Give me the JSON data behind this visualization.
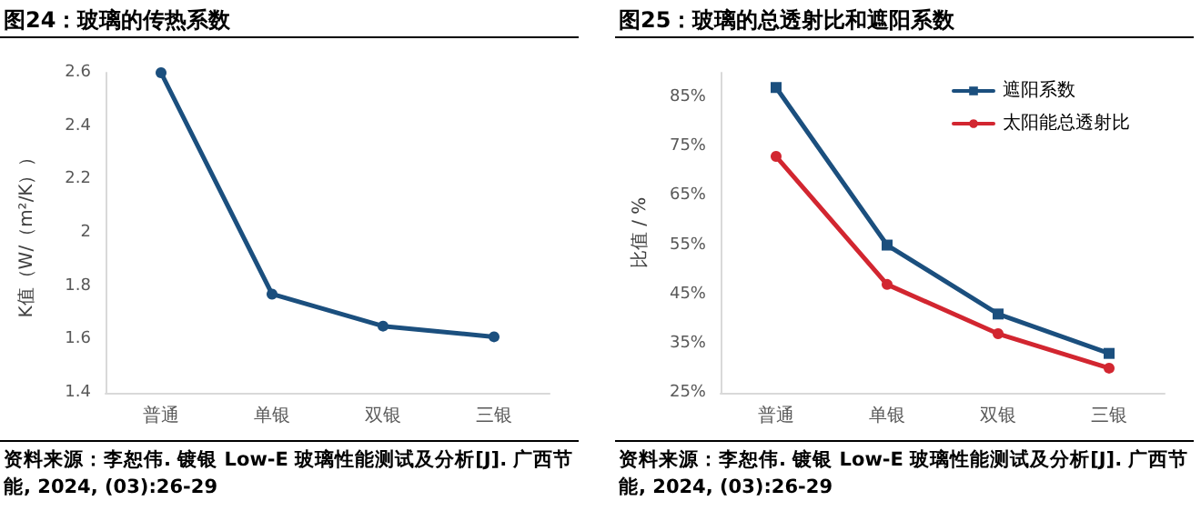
{
  "chart_data": [
    {
      "type": "line",
      "title": "图24：玻璃的传热系数",
      "ylabel": "K值（W/（m²/K））",
      "categories": [
        "普通",
        "单银",
        "双银",
        "三银"
      ],
      "series": [
        {
          "color": "#1b4f7e",
          "values": [
            2.6,
            1.77,
            1.65,
            1.61
          ]
        }
      ],
      "ylim": [
        1.4,
        2.6
      ],
      "yticks": [
        1.4,
        1.6,
        1.8,
        2,
        2.2,
        2.4,
        2.6
      ],
      "grid": false,
      "legend": false,
      "marker": "circle",
      "line_style": "solid",
      "annotations": [
        "资料来源：李恕伟. 镀银 Low-E 玻璃性能测试及分析[J]. 广西节能, 2024, (03):26-29"
      ]
    },
    {
      "type": "line",
      "title": "图25：玻璃的总透射比和遮阳系数",
      "ylabel": "比值 / %",
      "categories": [
        "普通",
        "单银",
        "双银",
        "三银"
      ],
      "series": [
        {
          "name": "遮阳系数",
          "color": "#1b4f7e",
          "marker": "square",
          "values": [
            87,
            55,
            41,
            33
          ]
        },
        {
          "name": "太阳能总透射比",
          "color": "#d22630",
          "marker": "circle",
          "values": [
            73,
            47,
            37,
            30
          ]
        }
      ],
      "ylim": [
        25,
        90
      ],
      "yticks": [
        {
          "value": 25,
          "label": "25%"
        },
        {
          "value": 35,
          "label": "35%"
        },
        {
          "value": 45,
          "label": "45%"
        },
        {
          "value": 55,
          "label": "55%"
        },
        {
          "value": 65,
          "label": "65%"
        },
        {
          "value": 75,
          "label": "75%"
        },
        {
          "value": 85,
          "label": "85%"
        }
      ],
      "grid": false,
      "legend": "top right",
      "line_style": "solid",
      "annotations": [
        "资料来源：李恕伟. 镀银 Low-E 玻璃性能测试及分析[J]. 广西节能, 2024, (03):26-29"
      ]
    }
  ]
}
